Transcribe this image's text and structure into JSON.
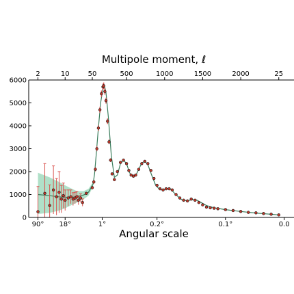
{
  "chart_data": {
    "type": "scatter",
    "top_xlabel": "Multipole moment, ℓ",
    "xlabel": "Angular scale",
    "ylabel": "",
    "ylim": [
      0,
      6000
    ],
    "xlim_deg": [
      120,
      0.065
    ],
    "yticks": [
      0,
      1000,
      2000,
      3000,
      4000,
      5000,
      6000
    ],
    "ytick_labels": [
      "0",
      "1000",
      "2000",
      "3000",
      "4000",
      "5000",
      "6000"
    ],
    "top_ticks": [
      {
        "label": "2",
        "ell": 2
      },
      {
        "label": "10",
        "ell": 10
      },
      {
        "label": "50",
        "ell": 50
      },
      {
        "label": "500",
        "ell": 500
      },
      {
        "label": "1000",
        "ell": 1000
      },
      {
        "label": "1500",
        "ell": 1500
      },
      {
        "label": "2000",
        "ell": 2000
      },
      {
        "label": "25",
        "ell": 2500
      }
    ],
    "bottom_ticks": [
      {
        "label": "90°",
        "deg": 90
      },
      {
        "label": "18°",
        "deg": 18
      },
      {
        "label": "1°",
        "deg": 1
      },
      {
        "label": "0.2°",
        "deg": 0.2
      },
      {
        "label": "0.1°",
        "deg": 0.1
      },
      {
        "label": "0.0",
        "deg": 0.07
      }
    ],
    "colors": {
      "points": "#c0392b",
      "errorbars": "#d9534f",
      "band": "#8fd3b0",
      "model": "#3a7d5c"
    },
    "low_ell_points": {
      "ell": [
        2,
        3,
        4,
        5,
        6,
        7,
        8,
        9,
        10,
        12,
        14,
        16,
        18,
        20,
        22,
        25,
        28
      ],
      "values": [
        250,
        1050,
        520,
        1200,
        900,
        1100,
        800,
        950,
        750,
        850,
        900,
        800,
        850,
        900,
        750,
        850,
        650
      ],
      "errors": [
        1100,
        1300,
        900,
        1050,
        800,
        900,
        600,
        550,
        450,
        350,
        300,
        280,
        250,
        230,
        200,
        180,
        160
      ]
    },
    "high_ell_points": {
      "ell": [
        35,
        50,
        70,
        90,
        110,
        130,
        150,
        170,
        190,
        200,
        215,
        230,
        250,
        270,
        290,
        310,
        340,
        380,
        420,
        460,
        500,
        530,
        560,
        590,
        620,
        660,
        700,
        740,
        780,
        820,
        860,
        900,
        940,
        980,
        1020,
        1060,
        1100,
        1150,
        1200,
        1250,
        1300,
        1350,
        1400,
        1450,
        1500,
        1550,
        1600,
        1650,
        1700,
        1800,
        1900,
        2000,
        2100,
        2200,
        2300,
        2400,
        2500
      ],
      "values": [
        1050,
        1300,
        1550,
        2100,
        3000,
        3900,
        4700,
        5400,
        5700,
        5750,
        5500,
        5100,
        4200,
        3300,
        2500,
        1900,
        1650,
        2000,
        2400,
        2500,
        2350,
        2050,
        1850,
        1800,
        1850,
        2100,
        2350,
        2450,
        2350,
        2050,
        1700,
        1400,
        1250,
        1200,
        1250,
        1250,
        1200,
        1000,
        850,
        750,
        720,
        800,
        750,
        650,
        550,
        450,
        420,
        400,
        380,
        340,
        300,
        260,
        220,
        200,
        170,
        140,
        110
      ],
      "errors": [
        60,
        70,
        80,
        90,
        110,
        120,
        130,
        140,
        140,
        140,
        140,
        130,
        120,
        100,
        80,
        60,
        50,
        50,
        50,
        50,
        50,
        45,
        45,
        45,
        45,
        45,
        45,
        45,
        45,
        45,
        40,
        40,
        40,
        40,
        40,
        40,
        35,
        35,
        35,
        35,
        35,
        35,
        35,
        30,
        30,
        30,
        30,
        30,
        30,
        30,
        30,
        25,
        25,
        25,
        25,
        25,
        25
      ]
    },
    "model_curve": {
      "ell": [
        2,
        4,
        7,
        10,
        15,
        20,
        30,
        40,
        60,
        80,
        100,
        130,
        160,
        190,
        210,
        230,
        260,
        300,
        340,
        380,
        420,
        460,
        500,
        540,
        580,
        620,
        660,
        700,
        740,
        780,
        830,
        880,
        930,
        980,
        1030,
        1080,
        1130,
        1180,
        1230,
        1300,
        1360,
        1420,
        1480,
        1550,
        1650,
        1800,
        2000,
        2200,
        2500
      ],
      "values": [
        1000,
        950,
        900,
        880,
        880,
        900,
        980,
        1100,
        1450,
        1900,
        2700,
        3900,
        5000,
        5650,
        5750,
        5450,
        4400,
        2700,
        1750,
        1850,
        2350,
        2500,
        2350,
        1950,
        1800,
        1830,
        2100,
        2380,
        2450,
        2300,
        1850,
        1420,
        1230,
        1210,
        1260,
        1230,
        1060,
        900,
        760,
        720,
        780,
        760,
        650,
        520,
        420,
        340,
        260,
        190,
        110
      ]
    },
    "variance_band": {
      "ell": [
        2,
        4,
        7,
        10,
        15,
        20,
        30,
        40,
        60
      ],
      "upper": [
        1950,
        1750,
        1550,
        1400,
        1250,
        1150,
        1150,
        1250,
        1550
      ],
      "lower": [
        150,
        200,
        300,
        400,
        550,
        650,
        800,
        950,
        1350
      ]
    }
  }
}
